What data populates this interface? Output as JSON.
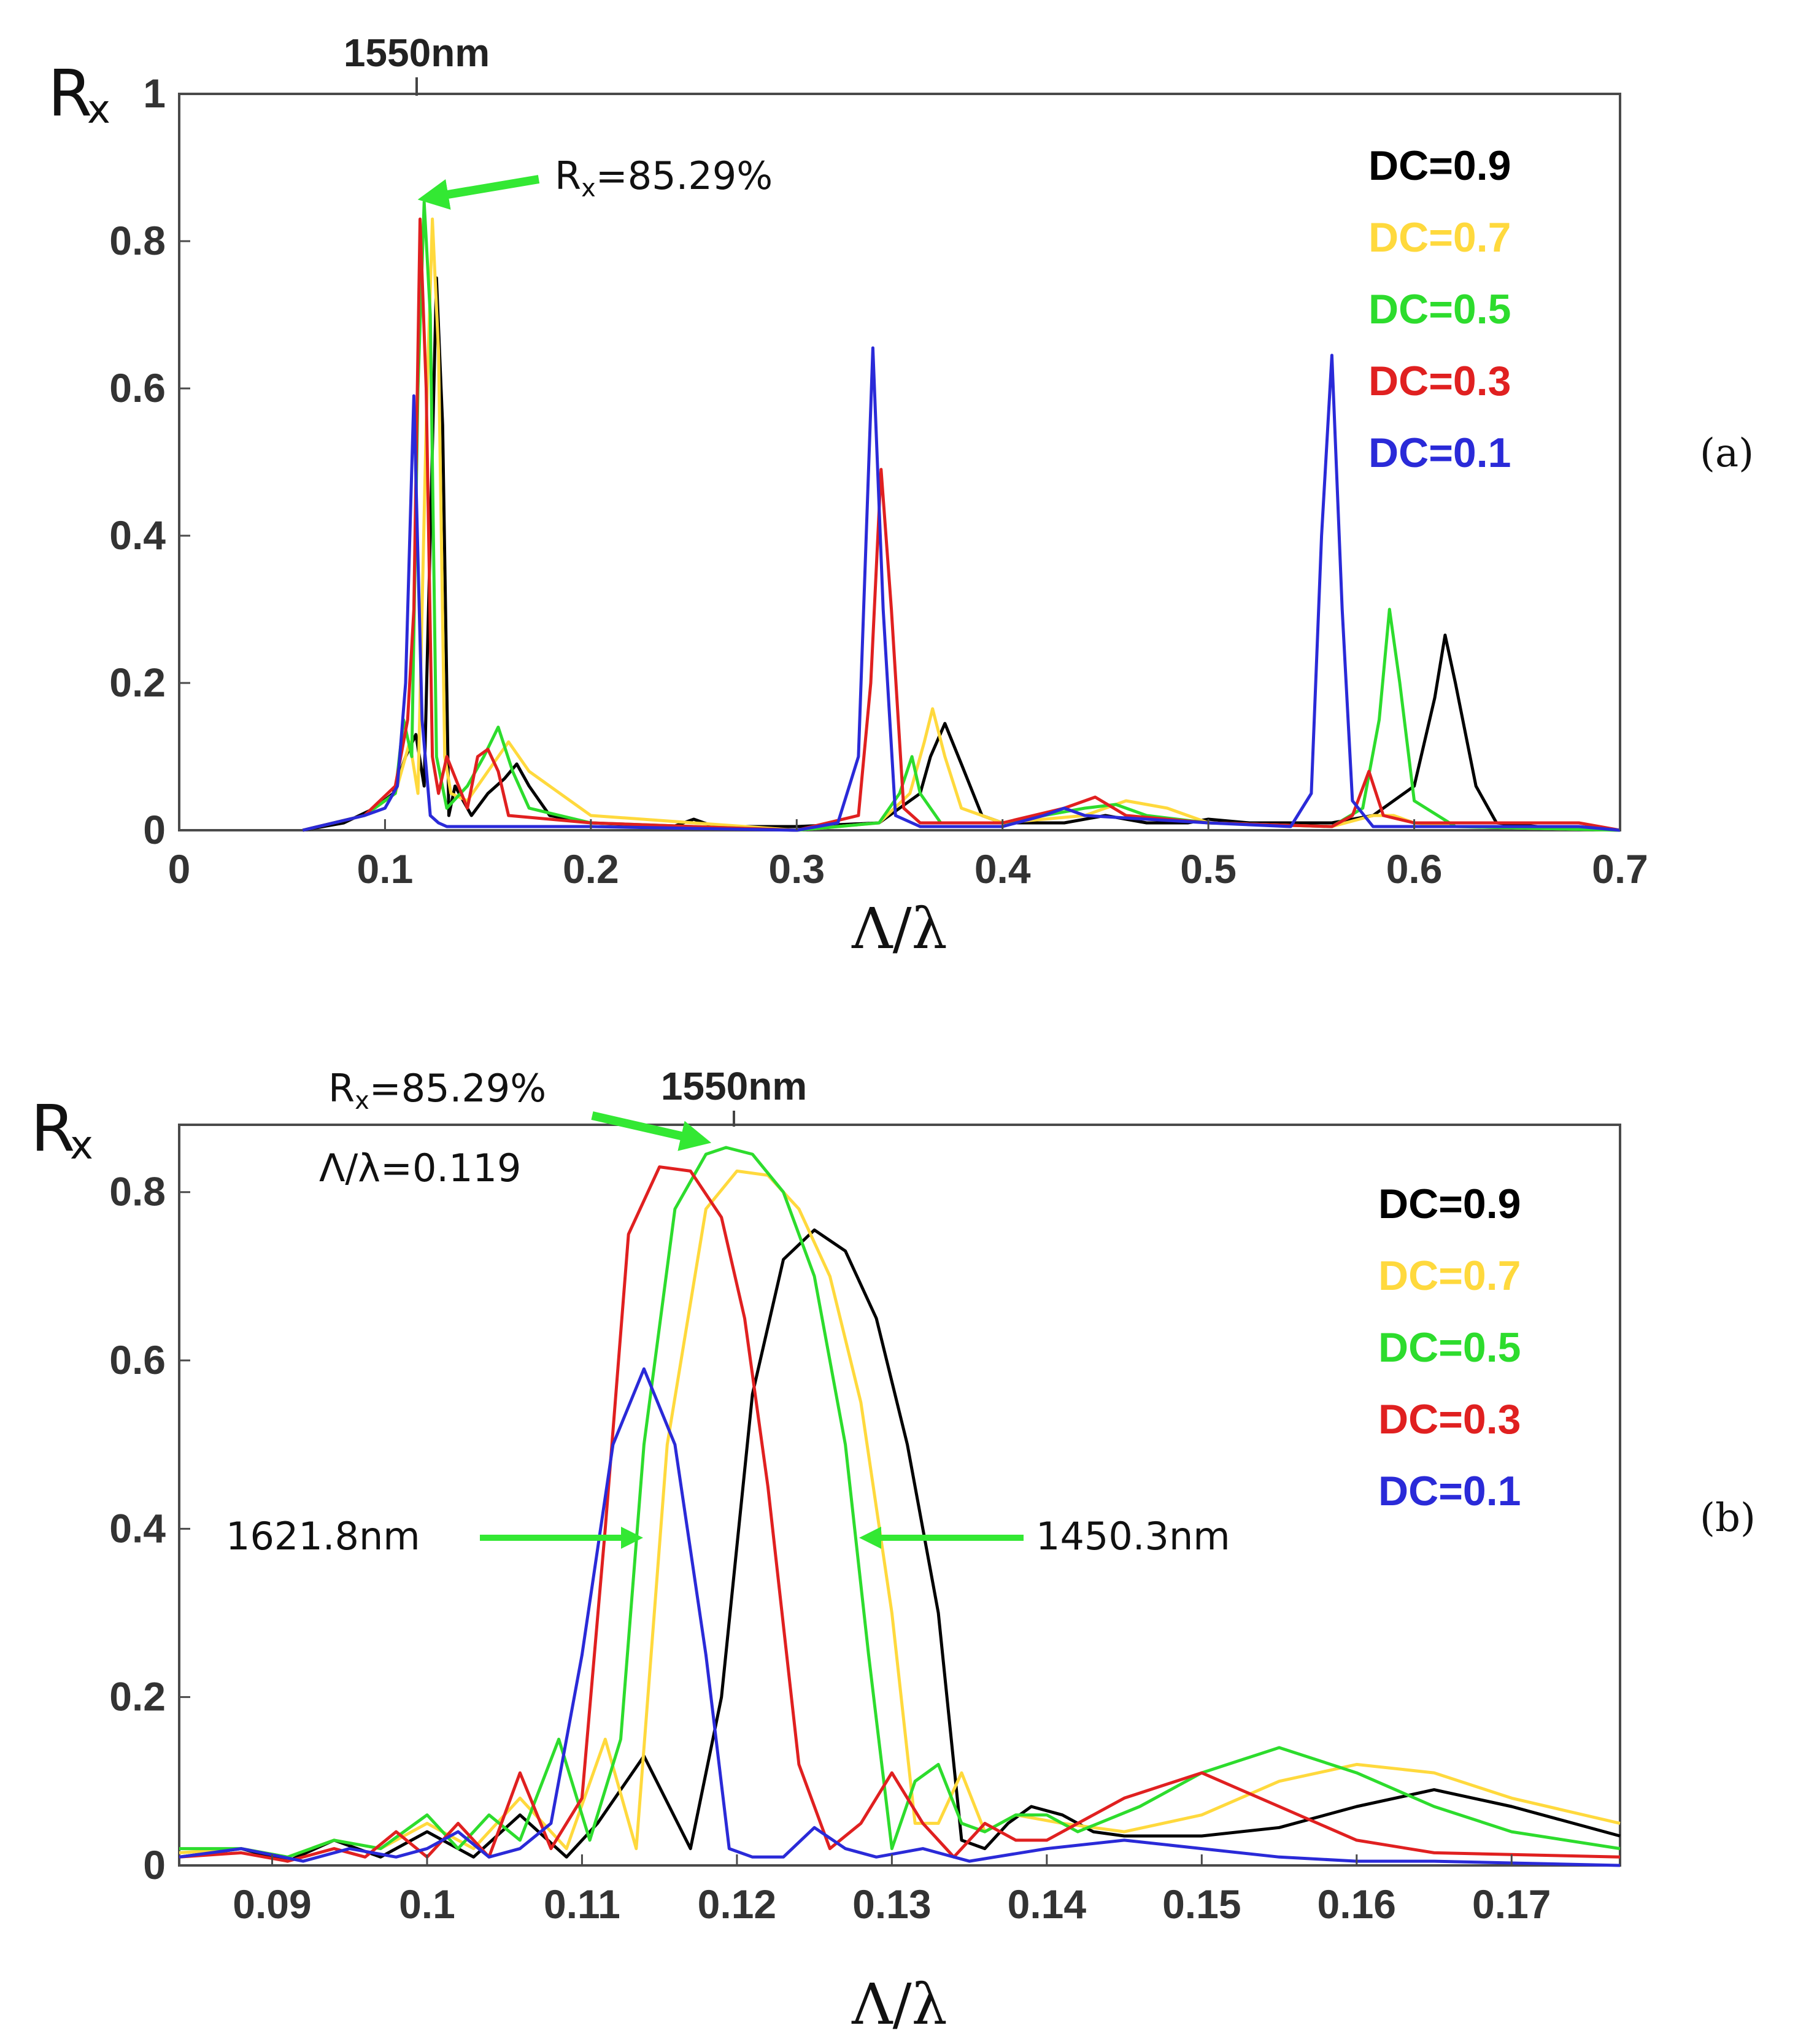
{
  "chart_data": [
    {
      "id": "a",
      "type": "line",
      "panel_label": "(a)",
      "ylabel": "R",
      "ylabel_subscript": "x",
      "xlabel": "Λ/λ",
      "xlim": [
        0,
        0.7
      ],
      "ylim": [
        0,
        1
      ],
      "xticks": [
        "0",
        "0.1",
        "0.2",
        "0.3",
        "0.4",
        "0.5",
        "0.6",
        "0.7"
      ],
      "yticks": [
        "0",
        "0.2",
        "0.4",
        "0.6",
        "0.8",
        "1"
      ],
      "top_marker": {
        "label": "1550nm",
        "x": 0.119
      },
      "annotations": [
        {
          "prefix": "R",
          "sub": "x",
          "text": "=85.29%",
          "target": [
            0.119,
            0.853
          ]
        }
      ],
      "legend": [
        {
          "label": "DC=0.9",
          "color": "#000000"
        },
        {
          "label": "DC=0.7",
          "color": "#ffd93d"
        },
        {
          "label": "DC=0.5",
          "color": "#2ddc2d"
        },
        {
          "label": "DC=0.3",
          "color": "#e02020"
        },
        {
          "label": "DC=0.1",
          "color": "#2a2ad8"
        }
      ],
      "series": [
        {
          "name": "DC=0.9",
          "color": "#000000",
          "x": [
            0.06,
            0.08,
            0.095,
            0.104,
            0.11,
            0.115,
            0.119,
            0.122,
            0.125,
            0.128,
            0.131,
            0.134,
            0.138,
            0.142,
            0.15,
            0.158,
            0.164,
            0.17,
            0.18,
            0.2,
            0.24,
            0.25,
            0.26,
            0.3,
            0.34,
            0.36,
            0.365,
            0.372,
            0.38,
            0.39,
            0.4,
            0.43,
            0.45,
            0.47,
            0.49,
            0.5,
            0.52,
            0.56,
            0.58,
            0.6,
            0.61,
            0.615,
            0.62,
            0.63,
            0.64,
            0.66,
            0.7
          ],
          "y": [
            0.0,
            0.01,
            0.03,
            0.05,
            0.1,
            0.13,
            0.06,
            0.4,
            0.75,
            0.55,
            0.02,
            0.06,
            0.04,
            0.02,
            0.05,
            0.07,
            0.09,
            0.06,
            0.02,
            0.01,
            0.005,
            0.015,
            0.005,
            0.005,
            0.01,
            0.05,
            0.1,
            0.145,
            0.09,
            0.02,
            0.01,
            0.01,
            0.02,
            0.01,
            0.01,
            0.015,
            0.01,
            0.01,
            0.02,
            0.06,
            0.18,
            0.265,
            0.2,
            0.06,
            0.01,
            0.005,
            0.0
          ]
        },
        {
          "name": "DC=0.7",
          "color": "#ffd93d",
          "x": [
            0.06,
            0.09,
            0.105,
            0.112,
            0.116,
            0.12,
            0.123,
            0.126,
            0.129,
            0.132,
            0.14,
            0.15,
            0.16,
            0.17,
            0.2,
            0.3,
            0.34,
            0.355,
            0.362,
            0.366,
            0.372,
            0.38,
            0.4,
            0.44,
            0.46,
            0.48,
            0.5,
            0.56,
            0.58,
            0.59,
            0.6,
            0.62,
            0.7
          ],
          "y": [
            0.0,
            0.02,
            0.05,
            0.12,
            0.05,
            0.55,
            0.83,
            0.65,
            0.1,
            0.05,
            0.04,
            0.08,
            0.12,
            0.08,
            0.02,
            0.0,
            0.01,
            0.05,
            0.12,
            0.165,
            0.1,
            0.03,
            0.01,
            0.02,
            0.04,
            0.03,
            0.01,
            0.005,
            0.02,
            0.02,
            0.01,
            0.005,
            0.0
          ]
        },
        {
          "name": "DC=0.5",
          "color": "#2ddc2d",
          "x": [
            0.06,
            0.09,
            0.105,
            0.109,
            0.113,
            0.116,
            0.119,
            0.122,
            0.125,
            0.13,
            0.14,
            0.148,
            0.155,
            0.162,
            0.17,
            0.2,
            0.3,
            0.34,
            0.35,
            0.356,
            0.36,
            0.37,
            0.4,
            0.44,
            0.455,
            0.47,
            0.5,
            0.56,
            0.575,
            0.583,
            0.588,
            0.593,
            0.6,
            0.62,
            0.7
          ],
          "y": [
            0.0,
            0.02,
            0.05,
            0.15,
            0.1,
            0.6,
            0.853,
            0.7,
            0.1,
            0.03,
            0.06,
            0.1,
            0.14,
            0.08,
            0.03,
            0.01,
            0.0,
            0.01,
            0.05,
            0.1,
            0.05,
            0.01,
            0.01,
            0.03,
            0.035,
            0.02,
            0.01,
            0.005,
            0.03,
            0.15,
            0.3,
            0.2,
            0.04,
            0.005,
            0.0
          ]
        },
        {
          "name": "DC=0.3",
          "color": "#e02020",
          "x": [
            0.06,
            0.09,
            0.105,
            0.111,
            0.114,
            0.117,
            0.12,
            0.123,
            0.126,
            0.13,
            0.14,
            0.145,
            0.15,
            0.155,
            0.16,
            0.2,
            0.3,
            0.33,
            0.336,
            0.341,
            0.346,
            0.352,
            0.36,
            0.4,
            0.43,
            0.445,
            0.46,
            0.5,
            0.56,
            0.57,
            0.578,
            0.585,
            0.6,
            0.68,
            0.7
          ],
          "y": [
            0.0,
            0.02,
            0.06,
            0.15,
            0.3,
            0.83,
            0.6,
            0.1,
            0.05,
            0.1,
            0.03,
            0.1,
            0.11,
            0.08,
            0.02,
            0.01,
            0.0,
            0.02,
            0.2,
            0.49,
            0.3,
            0.03,
            0.01,
            0.01,
            0.03,
            0.045,
            0.02,
            0.01,
            0.005,
            0.02,
            0.08,
            0.02,
            0.01,
            0.01,
            0.0
          ]
        },
        {
          "name": "DC=0.1",
          "color": "#2a2ad8",
          "x": [
            0.06,
            0.09,
            0.1,
            0.106,
            0.11,
            0.114,
            0.118,
            0.122,
            0.126,
            0.13,
            0.14,
            0.2,
            0.3,
            0.32,
            0.33,
            0.337,
            0.342,
            0.348,
            0.36,
            0.4,
            0.42,
            0.43,
            0.44,
            0.5,
            0.54,
            0.55,
            0.555,
            0.56,
            0.565,
            0.57,
            0.58,
            0.6,
            0.68,
            0.7
          ],
          "y": [
            0.0,
            0.02,
            0.03,
            0.06,
            0.2,
            0.59,
            0.15,
            0.02,
            0.01,
            0.005,
            0.005,
            0.005,
            0.0,
            0.01,
            0.1,
            0.655,
            0.3,
            0.02,
            0.005,
            0.005,
            0.02,
            0.03,
            0.02,
            0.01,
            0.005,
            0.05,
            0.4,
            0.645,
            0.3,
            0.04,
            0.005,
            0.005,
            0.005,
            0.0
          ]
        }
      ]
    },
    {
      "id": "b",
      "type": "line",
      "panel_label": "(b)",
      "ylabel": "R",
      "ylabel_subscript": "x",
      "xlabel": "Λ/λ",
      "xlim": [
        0.084,
        0.177
      ],
      "ylim": [
        0,
        0.88
      ],
      "xticks": [
        "0.09",
        "0.1",
        "0.11",
        "0.12",
        "0.13",
        "0.14",
        "0.15",
        "0.16",
        "0.17"
      ],
      "yticks": [
        "0",
        "0.2",
        "0.4",
        "0.6",
        "0.8"
      ],
      "top_marker": {
        "label": "1550nm",
        "x": 0.119
      },
      "annotations": [
        {
          "prefix": "R",
          "sub": "x",
          "text": "=85.29%",
          "target": [
            0.1178,
            0.853
          ]
        },
        {
          "text": "Λ/λ=0.119"
        },
        {
          "text": "1621.8nm",
          "direction": "right",
          "target": [
            0.1136,
            0.4
          ]
        },
        {
          "text": "1450.3nm",
          "direction": "left",
          "target": [
            0.1277,
            0.4
          ]
        }
      ],
      "legend": [
        {
          "label": "DC=0.9",
          "color": "#000000"
        },
        {
          "label": "DC=0.7",
          "color": "#ffd93d"
        },
        {
          "label": "DC=0.5",
          "color": "#2ddc2d"
        },
        {
          "label": "DC=0.3",
          "color": "#e02020"
        },
        {
          "label": "DC=0.1",
          "color": "#2a2ad8"
        }
      ],
      "series": [
        {
          "name": "DC=0.9",
          "color": "#000000",
          "x": [
            0.084,
            0.088,
            0.091,
            0.094,
            0.097,
            0.1,
            0.103,
            0.106,
            0.109,
            0.111,
            0.114,
            0.117,
            0.119,
            0.121,
            0.123,
            0.125,
            0.127,
            0.129,
            0.131,
            0.133,
            0.1345,
            0.136,
            0.1375,
            0.139,
            0.141,
            0.143,
            0.145,
            0.15,
            0.155,
            0.16,
            0.165,
            0.17,
            0.177
          ],
          "y": [
            0.01,
            0.02,
            0.005,
            0.03,
            0.01,
            0.04,
            0.01,
            0.06,
            0.01,
            0.05,
            0.13,
            0.02,
            0.2,
            0.56,
            0.72,
            0.755,
            0.73,
            0.65,
            0.5,
            0.3,
            0.03,
            0.02,
            0.05,
            0.07,
            0.06,
            0.04,
            0.035,
            0.035,
            0.045,
            0.07,
            0.09,
            0.07,
            0.035
          ]
        },
        {
          "name": "DC=0.7",
          "color": "#ffd93d",
          "x": [
            0.084,
            0.088,
            0.091,
            0.094,
            0.097,
            0.1,
            0.103,
            0.106,
            0.109,
            0.1115,
            0.1135,
            0.1155,
            0.118,
            0.12,
            0.122,
            0.124,
            0.126,
            0.128,
            0.13,
            0.1315,
            0.133,
            0.1345,
            0.136,
            0.138,
            0.141,
            0.145,
            0.15,
            0.155,
            0.16,
            0.165,
            0.17,
            0.177
          ],
          "y": [
            0.015,
            0.02,
            0.01,
            0.03,
            0.02,
            0.05,
            0.02,
            0.08,
            0.02,
            0.15,
            0.02,
            0.5,
            0.78,
            0.825,
            0.82,
            0.78,
            0.7,
            0.55,
            0.3,
            0.05,
            0.05,
            0.11,
            0.04,
            0.06,
            0.05,
            0.04,
            0.06,
            0.1,
            0.12,
            0.11,
            0.08,
            0.05
          ]
        },
        {
          "name": "DC=0.5",
          "color": "#2ddc2d",
          "x": [
            0.084,
            0.088,
            0.091,
            0.094,
            0.097,
            0.1,
            0.102,
            0.104,
            0.106,
            0.1085,
            0.1105,
            0.1125,
            0.114,
            0.116,
            0.118,
            0.1193,
            0.121,
            0.123,
            0.125,
            0.127,
            0.1285,
            0.13,
            0.1315,
            0.133,
            0.1345,
            0.136,
            0.138,
            0.14,
            0.142,
            0.146,
            0.15,
            0.155,
            0.16,
            0.165,
            0.17,
            0.177
          ],
          "y": [
            0.02,
            0.02,
            0.01,
            0.03,
            0.02,
            0.06,
            0.02,
            0.06,
            0.03,
            0.15,
            0.03,
            0.15,
            0.5,
            0.78,
            0.845,
            0.853,
            0.845,
            0.8,
            0.7,
            0.5,
            0.25,
            0.02,
            0.1,
            0.12,
            0.05,
            0.04,
            0.06,
            0.06,
            0.04,
            0.07,
            0.11,
            0.14,
            0.11,
            0.07,
            0.04,
            0.02
          ]
        },
        {
          "name": "DC=0.3",
          "color": "#e02020",
          "x": [
            0.084,
            0.088,
            0.091,
            0.094,
            0.096,
            0.098,
            0.1,
            0.102,
            0.104,
            0.106,
            0.108,
            0.11,
            0.1115,
            0.113,
            0.115,
            0.117,
            0.119,
            0.1205,
            0.122,
            0.124,
            0.126,
            0.128,
            0.13,
            0.132,
            0.134,
            0.136,
            0.138,
            0.14,
            0.145,
            0.15,
            0.155,
            0.16,
            0.165,
            0.177
          ],
          "y": [
            0.01,
            0.015,
            0.005,
            0.02,
            0.01,
            0.04,
            0.01,
            0.05,
            0.01,
            0.11,
            0.02,
            0.08,
            0.4,
            0.75,
            0.83,
            0.825,
            0.77,
            0.65,
            0.45,
            0.12,
            0.02,
            0.05,
            0.11,
            0.05,
            0.01,
            0.05,
            0.03,
            0.03,
            0.08,
            0.11,
            0.07,
            0.03,
            0.015,
            0.01
          ]
        },
        {
          "name": "DC=0.1",
          "color": "#2a2ad8",
          "x": [
            0.084,
            0.088,
            0.092,
            0.095,
            0.098,
            0.1,
            0.102,
            0.104,
            0.106,
            0.108,
            0.11,
            0.112,
            0.114,
            0.116,
            0.118,
            0.1195,
            0.121,
            0.123,
            0.125,
            0.127,
            0.129,
            0.132,
            0.135,
            0.14,
            0.145,
            0.15,
            0.155,
            0.16,
            0.165,
            0.177
          ],
          "y": [
            0.01,
            0.02,
            0.005,
            0.02,
            0.01,
            0.02,
            0.04,
            0.01,
            0.02,
            0.05,
            0.25,
            0.5,
            0.59,
            0.5,
            0.25,
            0.02,
            0.01,
            0.01,
            0.045,
            0.02,
            0.01,
            0.02,
            0.005,
            0.02,
            0.03,
            0.02,
            0.01,
            0.005,
            0.005,
            0.0
          ]
        }
      ]
    }
  ]
}
